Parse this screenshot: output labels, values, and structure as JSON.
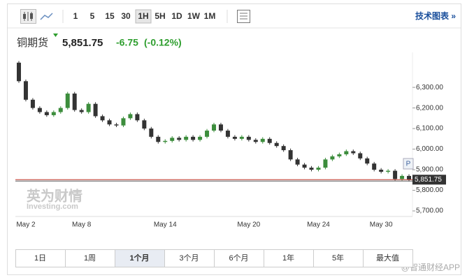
{
  "toolbar": {
    "intervals": [
      "1",
      "5",
      "15",
      "30",
      "1H",
      "5H",
      "1D",
      "1W",
      "1M"
    ],
    "active_interval": "1H",
    "tech_link": "技术图表 »"
  },
  "header": {
    "name": "铜期货",
    "change": "-6.75",
    "change_pct": "(-0.12%)"
  },
  "chart_data": {
    "type": "candlestick",
    "categories": [
      null,
      "May 2",
      null,
      null,
      null,
      null,
      null,
      null,
      null,
      "May 8",
      null,
      null,
      null,
      null,
      null,
      null,
      null,
      null,
      null,
      null,
      null,
      "May 14",
      null,
      null,
      null,
      null,
      null,
      null,
      null,
      null,
      null,
      null,
      null,
      "May 20",
      null,
      null,
      null,
      null,
      null,
      null,
      null,
      null,
      null,
      "May 24",
      null,
      null,
      null,
      null,
      null,
      null,
      null,
      null,
      "May 30",
      null,
      null,
      null,
      null
    ],
    "open": [
      6420,
      6330,
      6240,
      6200,
      6180,
      6165,
      6180,
      6200,
      6270,
      6190,
      6180,
      6220,
      6160,
      6140,
      6120,
      6115,
      6150,
      6170,
      6140,
      6100,
      6060,
      6035,
      6040,
      6055,
      6045,
      6060,
      6045,
      6060,
      6090,
      6120,
      6090,
      6060,
      6050,
      6060,
      6045,
      6035,
      6050,
      6030,
      6015,
      5995,
      5950,
      5925,
      5910,
      5900,
      5910,
      5950,
      5965,
      5975,
      5990,
      5980,
      5955,
      5930,
      5900,
      5890,
      5895,
      5855,
      5870
    ],
    "high": [
      6428,
      6338,
      6248,
      6208,
      6188,
      6188,
      6208,
      6278,
      6278,
      6198,
      6228,
      6228,
      6168,
      6148,
      6128,
      6158,
      6178,
      6178,
      6148,
      6108,
      6068,
      6048,
      6063,
      6063,
      6068,
      6068,
      6068,
      6098,
      6128,
      6128,
      6098,
      6068,
      6068,
      6068,
      6053,
      6058,
      6058,
      6038,
      6023,
      6003,
      5958,
      5933,
      5918,
      5918,
      5958,
      5973,
      5983,
      5998,
      5998,
      5988,
      5963,
      5938,
      5908,
      5903,
      5903,
      5878,
      5878
    ],
    "low": [
      6322,
      6232,
      6192,
      6172,
      6157,
      6157,
      6172,
      6192,
      6182,
      6172,
      6172,
      6152,
      6132,
      6112,
      6107,
      6107,
      6142,
      6132,
      6092,
      6052,
      6027,
      6027,
      6032,
      6037,
      6037,
      6037,
      6037,
      6052,
      6082,
      6082,
      6052,
      6042,
      6042,
      6037,
      6027,
      6027,
      6022,
      6007,
      5987,
      5942,
      5917,
      5902,
      5892,
      5892,
      5902,
      5942,
      5957,
      5967,
      5972,
      5947,
      5922,
      5892,
      5882,
      5882,
      5847,
      5847,
      5843
    ],
    "close": [
      6330,
      6240,
      6200,
      6180,
      6165,
      6180,
      6200,
      6270,
      6190,
      6180,
      6220,
      6160,
      6140,
      6120,
      6115,
      6150,
      6170,
      6140,
      6100,
      6060,
      6035,
      6040,
      6055,
      6045,
      6060,
      6045,
      6060,
      6090,
      6120,
      6090,
      6060,
      6050,
      6060,
      6045,
      6035,
      6050,
      6030,
      6015,
      5995,
      5950,
      5925,
      5910,
      5900,
      5910,
      5950,
      5965,
      5975,
      5990,
      5980,
      5955,
      5930,
      5900,
      5890,
      5895,
      5855,
      5870,
      5851.75
    ],
    "up_color": "#3c8d3c",
    "down_color": "#333333",
    "ylim": [
      5690,
      6470
    ],
    "yticks": [
      {
        "value": 5700,
        "label": "5,700.00"
      },
      {
        "value": 5800,
        "label": "5,800.00"
      },
      {
        "value": 5900,
        "label": "5,900.00"
      },
      {
        "value": 6000,
        "label": "6,000.00"
      },
      {
        "value": 6100,
        "label": "6,100.00"
      },
      {
        "value": 6200,
        "label": "6,200.00"
      },
      {
        "value": 6300,
        "label": "6,300.00"
      }
    ],
    "last_price": {
      "value": 5851.75,
      "label": "5,851.75"
    },
    "pin_label": "P",
    "watermark": {
      "brand": "英为财情",
      "site": "Investing.com"
    }
  },
  "range_tabs": [
    "1日",
    "1周",
    "1个月",
    "3个月",
    "6个月",
    "1年",
    "5年",
    "最大值"
  ],
  "active_tab": "1个月",
  "source_watermark": "@智通财经APP"
}
